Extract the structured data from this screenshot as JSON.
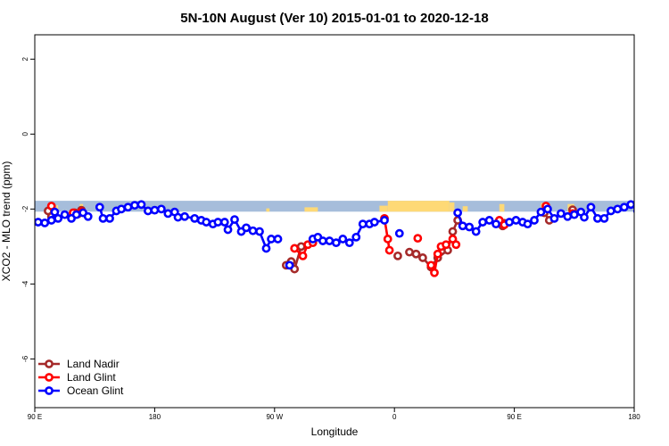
{
  "chart_data": {
    "type": "line",
    "title": "5N-10N August (Ver 10)   2015-01-01 to 2020-12-18",
    "xlabel": "Longitude",
    "ylabel": "XCO2 - MLO trend (ppm)",
    "xlim": [
      90,
      450
    ],
    "ylim": [
      -7.3,
      2.65
    ],
    "x_ticks": [
      {
        "value": 90,
        "label": "90 E"
      },
      {
        "value": 162,
        "label": "180"
      },
      {
        "value": 234,
        "label": "90 W"
      },
      {
        "value": 306,
        "label": "0"
      },
      {
        "value": 378,
        "label": "90 E"
      },
      {
        "value": 450,
        "label": "180"
      }
    ],
    "y_ticks": [
      {
        "value": 2,
        "label": "2"
      },
      {
        "value": 0,
        "label": "0"
      },
      {
        "value": -2,
        "label": "-2"
      },
      {
        "value": -4,
        "label": "-4"
      },
      {
        "value": -6,
        "label": "-6"
      }
    ],
    "land_band": {
      "y_top": -1.78,
      "y_bottom": -2.07,
      "ocean_color": "#a6bddb",
      "land_color": "#fed976"
    },
    "series": [
      {
        "name": "Land Nadir",
        "color": "#a52a2a",
        "points": [
          [
            98,
            -2.05
          ],
          [
            100,
            -2.2
          ],
          [
            114,
            -2.1
          ],
          [
            116,
            -2.13
          ],
          [
            118,
            -2.03
          ],
          [
            241,
            -3.5
          ],
          [
            244,
            -3.4
          ],
          [
            246,
            -3.6
          ],
          [
            250,
            -3.0
          ],
          [
            308,
            -3.25
          ],
          [
            315,
            -3.15
          ],
          [
            319,
            -3.2
          ],
          [
            323,
            -3.3
          ],
          [
            328,
            -3.55
          ],
          [
            332,
            -3.3
          ],
          [
            338,
            -3.1
          ],
          [
            341,
            -2.6
          ],
          [
            344,
            -2.3
          ],
          [
            371,
            -2.45
          ],
          [
            372,
            -2.38
          ],
          [
            396,
            -2.1
          ],
          [
            399,
            -2.3
          ],
          [
            413,
            -2.02
          ]
        ]
      },
      {
        "name": "Land Glint",
        "color": "#ff0000",
        "points": [
          [
            100,
            -1.92
          ],
          [
            113,
            -2.1
          ],
          [
            118,
            -2.07
          ],
          [
            246,
            -3.05
          ],
          [
            251,
            -3.25
          ],
          [
            254,
            -2.95
          ],
          [
            257,
            -2.9
          ],
          [
            300,
            -2.25
          ],
          [
            302,
            -2.8
          ],
          [
            303,
            -3.1
          ],
          [
            320,
            -2.78
          ],
          [
            328,
            -3.5
          ],
          [
            330,
            -3.7
          ],
          [
            332,
            -3.2
          ],
          [
            334,
            -3.0
          ],
          [
            337,
            -2.95
          ],
          [
            341,
            -2.8
          ],
          [
            343,
            -2.95
          ],
          [
            369,
            -2.3
          ],
          [
            372,
            -2.42
          ],
          [
            397,
            -1.92
          ],
          [
            413,
            -2.12
          ]
        ]
      },
      {
        "name": "Ocean Glint",
        "color": "#0000ff",
        "points": [
          [
            92,
            -2.35
          ],
          [
            96,
            -2.37
          ],
          [
            100,
            -2.3
          ],
          [
            102,
            -2.08
          ],
          [
            104,
            -2.25
          ],
          [
            108,
            -2.15
          ],
          [
            112,
            -2.25
          ],
          [
            115,
            -2.15
          ],
          [
            119,
            -2.1
          ],
          [
            122,
            -2.2
          ],
          [
            129,
            -1.95
          ],
          [
            131,
            -2.25
          ],
          [
            135,
            -2.25
          ],
          [
            139,
            -2.05
          ],
          [
            142,
            -2.0
          ],
          [
            146,
            -1.95
          ],
          [
            150,
            -1.9
          ],
          [
            154,
            -1.88
          ],
          [
            158,
            -2.05
          ],
          [
            162,
            -2.03
          ],
          [
            166,
            -2.0
          ],
          [
            170,
            -2.12
          ],
          [
            174,
            -2.08
          ],
          [
            176,
            -2.22
          ],
          [
            180,
            -2.2
          ],
          [
            186,
            -2.25
          ],
          [
            190,
            -2.3
          ],
          [
            193,
            -2.35
          ],
          [
            197,
            -2.4
          ],
          [
            200,
            -2.35
          ],
          [
            204,
            -2.35
          ],
          [
            206,
            -2.55
          ],
          [
            210,
            -2.28
          ],
          [
            214,
            -2.6
          ],
          [
            217,
            -2.5
          ],
          [
            221,
            -2.58
          ],
          [
            225,
            -2.6
          ],
          [
            229,
            -3.05
          ],
          [
            232,
            -2.8
          ],
          [
            236,
            -2.8
          ],
          [
            243,
            -3.5
          ],
          [
            257,
            -2.8
          ],
          [
            260,
            -2.75
          ],
          [
            263,
            -2.85
          ],
          [
            267,
            -2.85
          ],
          [
            271,
            -2.9
          ],
          [
            275,
            -2.8
          ],
          [
            279,
            -2.9
          ],
          [
            283,
            -2.75
          ],
          [
            287,
            -2.4
          ],
          [
            291,
            -2.4
          ],
          [
            294,
            -2.35
          ],
          [
            300,
            -2.3
          ],
          [
            309,
            -2.65
          ],
          [
            344,
            -2.1
          ],
          [
            347,
            -2.45
          ],
          [
            351,
            -2.48
          ],
          [
            355,
            -2.6
          ],
          [
            359,
            -2.35
          ],
          [
            363,
            -2.3
          ],
          [
            367,
            -2.4
          ],
          [
            375,
            -2.35
          ],
          [
            379,
            -2.3
          ],
          [
            383,
            -2.35
          ],
          [
            386,
            -2.4
          ],
          [
            390,
            -2.3
          ],
          [
            394,
            -2.08
          ],
          [
            398,
            -2.0
          ],
          [
            402,
            -2.25
          ],
          [
            406,
            -2.12
          ],
          [
            410,
            -2.2
          ],
          [
            414,
            -2.15
          ],
          [
            418,
            -2.08
          ],
          [
            420,
            -2.22
          ],
          [
            424,
            -1.95
          ],
          [
            428,
            -2.25
          ],
          [
            432,
            -2.25
          ],
          [
            436,
            -2.05
          ],
          [
            440,
            -2.0
          ],
          [
            444,
            -1.95
          ],
          [
            448,
            -1.88
          ],
          [
            452,
            -2.05
          ]
        ]
      }
    ],
    "legend": {
      "position": "bottom-left",
      "entries": [
        "Land Nadir",
        "Land Glint",
        "Ocean Glint"
      ]
    }
  }
}
